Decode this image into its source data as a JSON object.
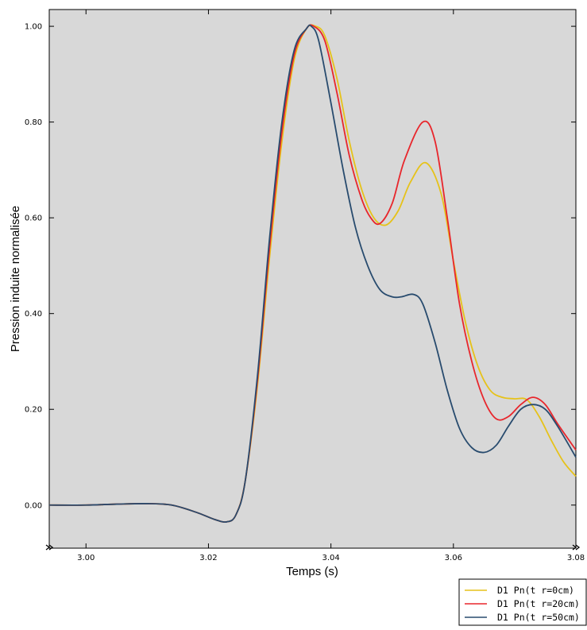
{
  "chart_data": {
    "type": "line",
    "title": "",
    "xlabel": "Temps (s)",
    "ylabel": "Pression induite normalisée",
    "xlim": [
      2.994,
      3.08
    ],
    "ylim": [
      -0.09,
      1.035
    ],
    "x_ticks": [
      3.0,
      3.02,
      3.04,
      3.06,
      3.08
    ],
    "x_tick_labels": [
      "3.00",
      "3.02",
      "3.04",
      "3.06",
      "3.08"
    ],
    "y_ticks": [
      0.0,
      0.2,
      0.4,
      0.6,
      0.8,
      1.0
    ],
    "y_tick_labels": [
      "0.00",
      "0.20",
      "0.40",
      "0.60",
      "0.80",
      "1.00"
    ],
    "grid": false,
    "background": "#d8d8d8",
    "legend_position": "bottom-right, below plot",
    "series": [
      {
        "name": "D1 Pn(t r=0cm)",
        "color": "#e6c21a",
        "x": [
          2.994,
          3.0,
          3.005,
          3.01,
          3.014,
          3.018,
          3.021,
          3.023,
          3.0245,
          3.026,
          3.028,
          3.03,
          3.032,
          3.034,
          3.036,
          3.0375,
          3.039,
          3.041,
          3.043,
          3.045,
          3.047,
          3.049,
          3.051,
          3.053,
          3.0555,
          3.058,
          3.06,
          3.062,
          3.064,
          3.066,
          3.068,
          3.07,
          3.072,
          3.074,
          3.076,
          3.078,
          3.08
        ],
        "y": [
          0.0,
          0.0,
          0.002,
          0.003,
          0.0,
          -0.015,
          -0.03,
          -0.035,
          -0.02,
          0.05,
          0.25,
          0.52,
          0.76,
          0.93,
          0.995,
          1.0,
          0.98,
          0.89,
          0.76,
          0.66,
          0.6,
          0.585,
          0.615,
          0.675,
          0.715,
          0.65,
          0.51,
          0.38,
          0.29,
          0.24,
          0.225,
          0.222,
          0.22,
          0.185,
          0.135,
          0.09,
          0.06
        ]
      },
      {
        "name": "D1 Pn(t r=20cm)",
        "color": "#e8262c",
        "x": [
          2.994,
          3.0,
          3.005,
          3.01,
          3.014,
          3.018,
          3.021,
          3.023,
          3.0245,
          3.026,
          3.028,
          3.03,
          3.032,
          3.034,
          3.036,
          3.0372,
          3.039,
          3.041,
          3.043,
          3.045,
          3.0465,
          3.048,
          3.05,
          3.052,
          3.055,
          3.057,
          3.059,
          3.061,
          3.063,
          3.065,
          3.067,
          3.069,
          3.071,
          3.073,
          3.075,
          3.077,
          3.08
        ],
        "y": [
          0.0,
          0.0,
          0.002,
          0.003,
          0.0,
          -0.015,
          -0.03,
          -0.035,
          -0.02,
          0.05,
          0.26,
          0.54,
          0.78,
          0.94,
          0.995,
          1.0,
          0.97,
          0.86,
          0.73,
          0.64,
          0.6,
          0.588,
          0.63,
          0.72,
          0.8,
          0.76,
          0.6,
          0.42,
          0.3,
          0.22,
          0.18,
          0.185,
          0.21,
          0.225,
          0.21,
          0.17,
          0.115
        ]
      },
      {
        "name": "D1 Pn(t r=50cm)",
        "color": "#284b6e",
        "x": [
          2.994,
          3.0,
          3.005,
          3.01,
          3.014,
          3.018,
          3.021,
          3.023,
          3.0245,
          3.026,
          3.028,
          3.03,
          3.032,
          3.034,
          3.036,
          3.0368,
          3.038,
          3.04,
          3.042,
          3.044,
          3.046,
          3.048,
          3.05,
          3.0515,
          3.0535,
          3.055,
          3.057,
          3.059,
          3.061,
          3.063,
          3.065,
          3.067,
          3.069,
          3.071,
          3.073,
          3.075,
          3.077,
          3.08
        ],
        "y": [
          0.0,
          0.0,
          0.002,
          0.003,
          0.0,
          -0.015,
          -0.03,
          -0.035,
          -0.02,
          0.05,
          0.27,
          0.56,
          0.8,
          0.95,
          0.995,
          1.0,
          0.97,
          0.84,
          0.7,
          0.58,
          0.5,
          0.45,
          0.435,
          0.435,
          0.44,
          0.42,
          0.34,
          0.24,
          0.16,
          0.12,
          0.11,
          0.125,
          0.165,
          0.2,
          0.21,
          0.2,
          0.165,
          0.1
        ]
      }
    ]
  }
}
